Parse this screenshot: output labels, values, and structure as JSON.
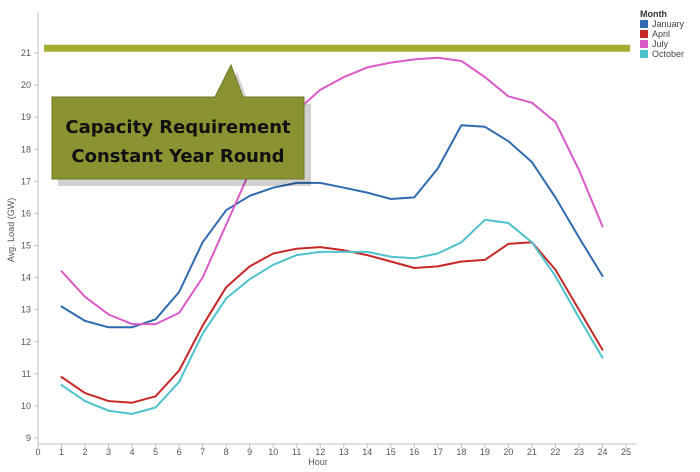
{
  "chart_data": {
    "type": "line",
    "title": "",
    "xlabel": "Hour",
    "ylabel": "Avg. Load (GW)",
    "xlim": [
      0,
      25
    ],
    "ylim": [
      9,
      21.5
    ],
    "x_ticks": [
      0,
      1,
      2,
      3,
      4,
      5,
      6,
      7,
      8,
      9,
      10,
      11,
      12,
      13,
      14,
      15,
      16,
      17,
      18,
      19,
      20,
      21,
      22,
      23,
      24,
      25
    ],
    "y_ticks": [
      9,
      10,
      11,
      12,
      13,
      14,
      15,
      16,
      17,
      18,
      19,
      20,
      21
    ],
    "grid": false,
    "legend": {
      "title": "Month",
      "position": "top-right"
    },
    "x": [
      1,
      2,
      3,
      4,
      5,
      6,
      7,
      8,
      9,
      10,
      11,
      12,
      13,
      14,
      15,
      16,
      17,
      18,
      19,
      20,
      21,
      22,
      23,
      24
    ],
    "series": [
      {
        "name": "January",
        "color": "#2f6bb0",
        "values": [
          13.1,
          12.65,
          12.45,
          12.45,
          12.7,
          13.55,
          15.1,
          16.1,
          16.55,
          16.8,
          16.95,
          16.95,
          16.8,
          16.65,
          16.45,
          16.5,
          17.4,
          18.75,
          18.7,
          18.25,
          17.6,
          16.5,
          15.25,
          14.05
        ]
      },
      {
        "name": "April",
        "color": "#c62828",
        "values": [
          10.9,
          10.4,
          10.15,
          10.1,
          10.3,
          11.1,
          12.5,
          13.7,
          14.35,
          14.75,
          14.9,
          14.95,
          14.85,
          14.7,
          14.5,
          14.3,
          14.35,
          14.5,
          14.55,
          15.05,
          15.1,
          14.25,
          13.0,
          11.75
        ]
      },
      {
        "name": "July",
        "color": "#d95ac6",
        "values": [
          14.2,
          13.4,
          12.85,
          12.55,
          12.55,
          12.9,
          14.0,
          15.65,
          17.3,
          18.5,
          19.2,
          19.85,
          20.25,
          20.55,
          20.7,
          20.8,
          20.85,
          20.75,
          20.25,
          19.65,
          19.45,
          18.85,
          17.35,
          15.6
        ]
      },
      {
        "name": "October",
        "color": "#4fc1cc",
        "values": [
          10.65,
          10.15,
          9.85,
          9.75,
          9.95,
          10.75,
          12.25,
          13.35,
          13.95,
          14.4,
          14.7,
          14.8,
          14.8,
          14.8,
          14.65,
          14.6,
          14.75,
          15.1,
          15.8,
          15.7,
          15.1,
          14.05,
          12.75,
          11.5
        ]
      }
    ],
    "reference_line": {
      "value": 21.15,
      "color": "#a5ad31"
    },
    "callout": {
      "lines": [
        "Capacity Requirement",
        "Constant Year Round"
      ],
      "color": "#8a9231"
    }
  }
}
